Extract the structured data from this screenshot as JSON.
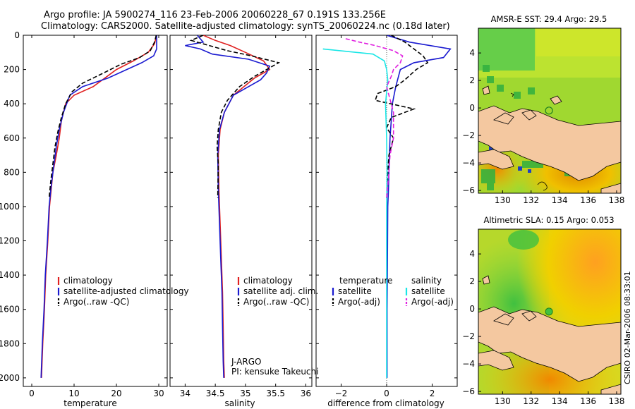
{
  "titles": {
    "line1": "Argo profile: JA 5900274_116 23-Feb-2006 20060228_67 0.191S 133.256E",
    "line2": "Climatology: CARS2000. Satellite-adjusted climatology: synTS_20060224.nc (0.18d later)"
  },
  "timestamp": "CSIRO 02-Mar-2006 08:33:01",
  "colors": {
    "red": "#e02020",
    "blue": "#1a1ad0",
    "black": "#000000",
    "cyan": "#19e6e6",
    "magenta": "#e020e0"
  },
  "chart_data": [
    {
      "type": "line",
      "name": "temperature",
      "xlabel": "temperature",
      "ylabel": "",
      "xlim": [
        -2,
        32
      ],
      "ylim": [
        2050,
        0
      ],
      "xticks": [
        0,
        10,
        20,
        30
      ],
      "yticks": [
        0,
        200,
        400,
        600,
        800,
        1000,
        1200,
        1400,
        1600,
        1800,
        2000
      ],
      "legend": [
        "climatology",
        "satellite-adjusted climatology",
        "Argo(..raw -QC)"
      ],
      "series": [
        {
          "name": "climatology",
          "color": "red",
          "dash": false,
          "x": [
            29.5,
            29.0,
            27.5,
            24.0,
            20.0,
            14.5,
            10.0,
            8.0,
            7.0,
            6.5,
            5.8,
            5.0,
            4.6,
            4.2,
            3.8,
            3.3,
            3.0,
            2.6,
            2.3
          ],
          "y": [
            0,
            50,
            100,
            150,
            200,
            300,
            350,
            400,
            500,
            600,
            700,
            800,
            900,
            1000,
            1200,
            1400,
            1600,
            1800,
            2000
          ]
        },
        {
          "name": "satellite-adjusted climatology",
          "color": "blue",
          "dash": false,
          "x": [
            29.5,
            29.5,
            29.5,
            28.8,
            26.0,
            18.0,
            12.0,
            9.0,
            7.5,
            6.5,
            5.8,
            5.0,
            4.5,
            4.1,
            3.7,
            3.2,
            2.9,
            2.5,
            2.2
          ],
          "y": [
            0,
            50,
            80,
            120,
            160,
            250,
            300,
            350,
            450,
            550,
            650,
            800,
            900,
            1000,
            1200,
            1400,
            1600,
            1800,
            2000
          ]
        },
        {
          "name": "Argo(..raw -QC)",
          "color": "black",
          "dash": true,
          "x": [
            29.4,
            29.0,
            28.0,
            25.5,
            21.0,
            17.0,
            12.0,
            9.5,
            8.0,
            7.0,
            6.2,
            5.5,
            5.0,
            4.5,
            4.1
          ],
          "y": [
            0,
            40,
            90,
            130,
            170,
            220,
            280,
            330,
            400,
            480,
            560,
            650,
            750,
            850,
            950
          ]
        }
      ],
      "annotations": []
    },
    {
      "type": "line",
      "name": "salinity",
      "xlabel": "salinity",
      "ylabel": "",
      "xlim": [
        33.75,
        36.1
      ],
      "ylim": [
        2050,
        0
      ],
      "xticks": [
        34,
        34.5,
        35,
        35.5,
        36
      ],
      "legend": [
        "climatology",
        "satellite adj. clim.",
        "Argo(..raw -QC)"
      ],
      "series": [
        {
          "name": "climatology",
          "color": "red",
          "dash": false,
          "x": [
            34.3,
            34.5,
            34.75,
            35.0,
            35.3,
            35.4,
            35.15,
            34.8,
            34.65,
            34.58,
            34.55,
            34.56,
            34.58,
            34.6,
            34.62,
            34.63,
            34.64,
            34.65
          ],
          "y": [
            0,
            30,
            60,
            100,
            150,
            200,
            250,
            350,
            450,
            550,
            700,
            900,
            1100,
            1300,
            1500,
            1700,
            1900,
            2000
          ]
        },
        {
          "name": "satellite adj. clim.",
          "color": "blue",
          "dash": false,
          "x": [
            34.2,
            34.3,
            34.0,
            34.25,
            34.45,
            35.05,
            35.4,
            35.35,
            35.25,
            34.8,
            34.65,
            34.57,
            34.54,
            34.55,
            34.57,
            34.59,
            34.61,
            34.62,
            34.63,
            34.64
          ],
          "y": [
            0,
            40,
            60,
            80,
            110,
            140,
            180,
            220,
            260,
            350,
            450,
            550,
            700,
            900,
            1100,
            1300,
            1500,
            1700,
            1900,
            2000
          ]
        },
        {
          "name": "Argo(..raw -QC)",
          "color": "black",
          "dash": true,
          "x": [
            34.3,
            34.1,
            34.4,
            34.7,
            35.1,
            35.55,
            35.35,
            35.15,
            34.9,
            34.7,
            34.6,
            34.55,
            34.53,
            34.55,
            34.54
          ],
          "y": [
            0,
            30,
            60,
            90,
            120,
            160,
            200,
            240,
            300,
            380,
            450,
            550,
            650,
            750,
            950
          ]
        }
      ],
      "annotations": [
        "J-ARGO",
        "PI: kensuke Takeuchi"
      ]
    },
    {
      "type": "line",
      "name": "difference",
      "xlabel": "difference from climatology",
      "ylabel": "",
      "xlim": [
        -3.1,
        3.1
      ],
      "ylim": [
        2050,
        0
      ],
      "xticks": [
        -2,
        0,
        2
      ],
      "legend_headers": [
        "temperature",
        "salinity"
      ],
      "legend": [
        "satellite",
        "Argo(-adj)",
        "satellite",
        "Argo(-adj)"
      ],
      "series": [
        {
          "name": "temperature satellite",
          "color": "blue",
          "dash": false,
          "x": [
            0,
            1.0,
            2.8,
            2.5,
            1.2,
            0.6,
            0.4,
            0.25,
            0.2,
            0.15,
            0.12,
            0.1,
            0.08,
            0.05,
            0.04,
            0.03,
            0.02,
            0.02,
            0.02
          ],
          "y": [
            0,
            40,
            80,
            130,
            160,
            200,
            300,
            400,
            500,
            600,
            700,
            800,
            900,
            1000,
            1200,
            1400,
            1600,
            1800,
            2000
          ]
        },
        {
          "name": "temperature Argo(-adj)",
          "color": "black",
          "dash": true,
          "x": [
            0.2,
            0.8,
            1.2,
            1.6,
            1.8,
            1.3,
            0.8,
            0.4,
            -0.4,
            -0.5,
            1.2,
            0.2,
            0.0,
            0.3,
            0.1,
            0.05,
            0.0
          ],
          "y": [
            0,
            40,
            80,
            120,
            160,
            200,
            260,
            300,
            340,
            380,
            430,
            480,
            540,
            600,
            700,
            800,
            950
          ]
        },
        {
          "name": "salinity satellite",
          "color": "cyan",
          "dash": false,
          "x": [
            -2.8,
            -0.6,
            -0.1,
            0.0,
            0.05,
            -0.05,
            0.0,
            0.02,
            0.0,
            0.0,
            0.0,
            0.0,
            0.0
          ],
          "y": [
            80,
            110,
            150,
            200,
            260,
            400,
            600,
            800,
            1000,
            1200,
            1500,
            1800,
            2000
          ]
        },
        {
          "name": "salinity Argo(-adj)",
          "color": "magenta",
          "dash": true,
          "x": [
            -1.8,
            -1.2,
            -0.5,
            0.3,
            0.7,
            0.6,
            0.3,
            0.2,
            0.0,
            0.3,
            0.3,
            0.15,
            0.1,
            0.0
          ],
          "y": [
            20,
            40,
            60,
            90,
            120,
            160,
            200,
            240,
            300,
            450,
            600,
            700,
            800,
            950
          ]
        }
      ],
      "annotations": []
    },
    {
      "type": "heatmap",
      "name": "amsr_sst",
      "title": "AMSR-E SST: 29.4  Argo: 29.5",
      "xlim": [
        128.3,
        138.3
      ],
      "ylim": [
        -6.2,
        5.8
      ],
      "xticks": [
        130,
        132,
        134,
        136,
        138
      ],
      "yticks": [
        -6,
        -4,
        -2,
        0,
        2,
        4
      ],
      "marker": {
        "lon": 133.256,
        "lat": -0.191
      }
    },
    {
      "type": "heatmap",
      "name": "altimetric_sla",
      "title": "Altimetric SLA: 0.15  Argo: 0.053",
      "xlim": [
        128.3,
        138.3
      ],
      "ylim": [
        -6.2,
        5.8
      ],
      "xticks": [
        130,
        132,
        134,
        136,
        138
      ],
      "yticks": [
        -6,
        -4,
        -2,
        0,
        2,
        4
      ],
      "marker": {
        "lon": 133.256,
        "lat": -0.191
      }
    }
  ]
}
